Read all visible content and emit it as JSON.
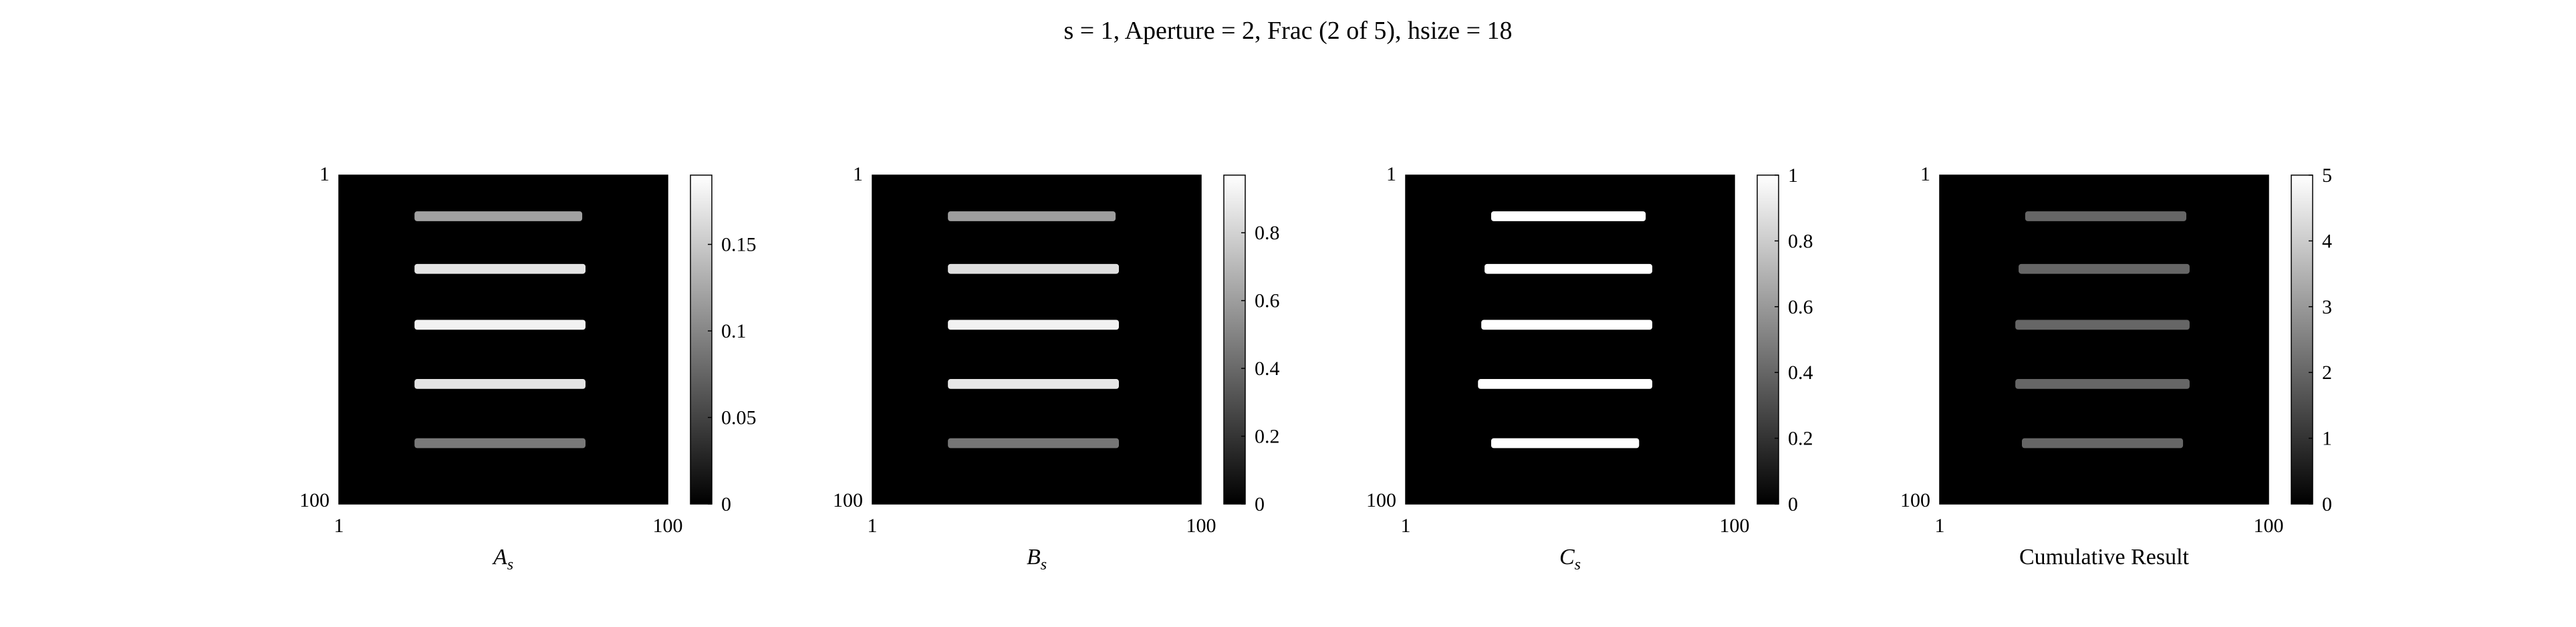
{
  "figure": {
    "title": "s = 1, Aperture = 2, Frac (2 of 5), hsize = 18"
  },
  "chart_data": [
    {
      "type": "heatmap",
      "xlabel": "A",
      "xlabel_sub": "s",
      "x_ticks": [
        "1",
        "100"
      ],
      "y_ticks": [
        "1",
        "100"
      ],
      "xlim": [
        1,
        100
      ],
      "ylim": [
        1,
        100
      ],
      "colormap": "gray",
      "colorbar": {
        "ticks": [
          "0",
          "0.05",
          "0.1",
          "0.15"
        ],
        "tick_values": [
          0,
          0.05,
          0.1,
          0.15
        ],
        "range": [
          0,
          0.19
        ]
      },
      "bars": [
        {
          "row": 13,
          "x0": 24,
          "x1": 74,
          "value": 0.12
        },
        {
          "row": 29,
          "x0": 24,
          "x1": 75,
          "value": 0.17
        },
        {
          "row": 46,
          "x0": 24,
          "x1": 75,
          "value": 0.18
        },
        {
          "row": 64,
          "x0": 24,
          "x1": 75,
          "value": 0.17
        },
        {
          "row": 82,
          "x0": 24,
          "x1": 75,
          "value": 0.09
        }
      ]
    },
    {
      "type": "heatmap",
      "xlabel": "B",
      "xlabel_sub": "s",
      "x_ticks": [
        "1",
        "100"
      ],
      "y_ticks": [
        "1",
        "100"
      ],
      "xlim": [
        1,
        100
      ],
      "ylim": [
        1,
        100
      ],
      "colormap": "gray",
      "colorbar": {
        "ticks": [
          "0",
          "0.2",
          "0.4",
          "0.6",
          "0.8"
        ],
        "tick_values": [
          0,
          0.2,
          0.4,
          0.6,
          0.8
        ],
        "range": [
          0,
          0.97
        ]
      },
      "bars": [
        {
          "row": 13,
          "x0": 24,
          "x1": 74,
          "value": 0.6
        },
        {
          "row": 29,
          "x0": 24,
          "x1": 75,
          "value": 0.85
        },
        {
          "row": 46,
          "x0": 24,
          "x1": 75,
          "value": 0.92
        },
        {
          "row": 64,
          "x0": 24,
          "x1": 75,
          "value": 0.88
        },
        {
          "row": 82,
          "x0": 24,
          "x1": 75,
          "value": 0.45
        }
      ]
    },
    {
      "type": "heatmap",
      "xlabel": "C",
      "xlabel_sub": "s",
      "x_ticks": [
        "1",
        "100"
      ],
      "y_ticks": [
        "1",
        "100"
      ],
      "xlim": [
        1,
        100
      ],
      "ylim": [
        1,
        100
      ],
      "colormap": "gray",
      "colorbar": {
        "ticks": [
          "0",
          "0.2",
          "0.4",
          "0.6",
          "0.8",
          "1"
        ],
        "tick_values": [
          0,
          0.2,
          0.4,
          0.6,
          0.8,
          1
        ],
        "range": [
          0,
          1
        ]
      },
      "bars": [
        {
          "row": 13,
          "x0": 27,
          "x1": 73,
          "value": 1
        },
        {
          "row": 29,
          "x0": 25,
          "x1": 75,
          "value": 1
        },
        {
          "row": 46,
          "x0": 24,
          "x1": 75,
          "value": 1
        },
        {
          "row": 64,
          "x0": 23,
          "x1": 75,
          "value": 1
        },
        {
          "row": 82,
          "x0": 27,
          "x1": 71,
          "value": 1
        }
      ]
    },
    {
      "type": "heatmap",
      "xlabel": "Cumulative Result",
      "xlabel_sub": "",
      "x_ticks": [
        "1",
        "100"
      ],
      "y_ticks": [
        "1",
        "100"
      ],
      "xlim": [
        1,
        100
      ],
      "ylim": [
        1,
        100
      ],
      "colormap": "gray",
      "colorbar": {
        "ticks": [
          "0",
          "1",
          "2",
          "3",
          "4",
          "5"
        ],
        "tick_values": [
          0,
          1,
          2,
          3,
          4,
          5
        ],
        "range": [
          0,
          5
        ]
      },
      "bars": [
        {
          "row": 13,
          "x0": 27,
          "x1": 75,
          "value": 2
        },
        {
          "row": 29,
          "x0": 25,
          "x1": 76,
          "value": 2
        },
        {
          "row": 46,
          "x0": 24,
          "x1": 76,
          "value": 2
        },
        {
          "row": 64,
          "x0": 24,
          "x1": 76,
          "value": 2
        },
        {
          "row": 82,
          "x0": 26,
          "x1": 74,
          "value": 2
        }
      ]
    }
  ]
}
